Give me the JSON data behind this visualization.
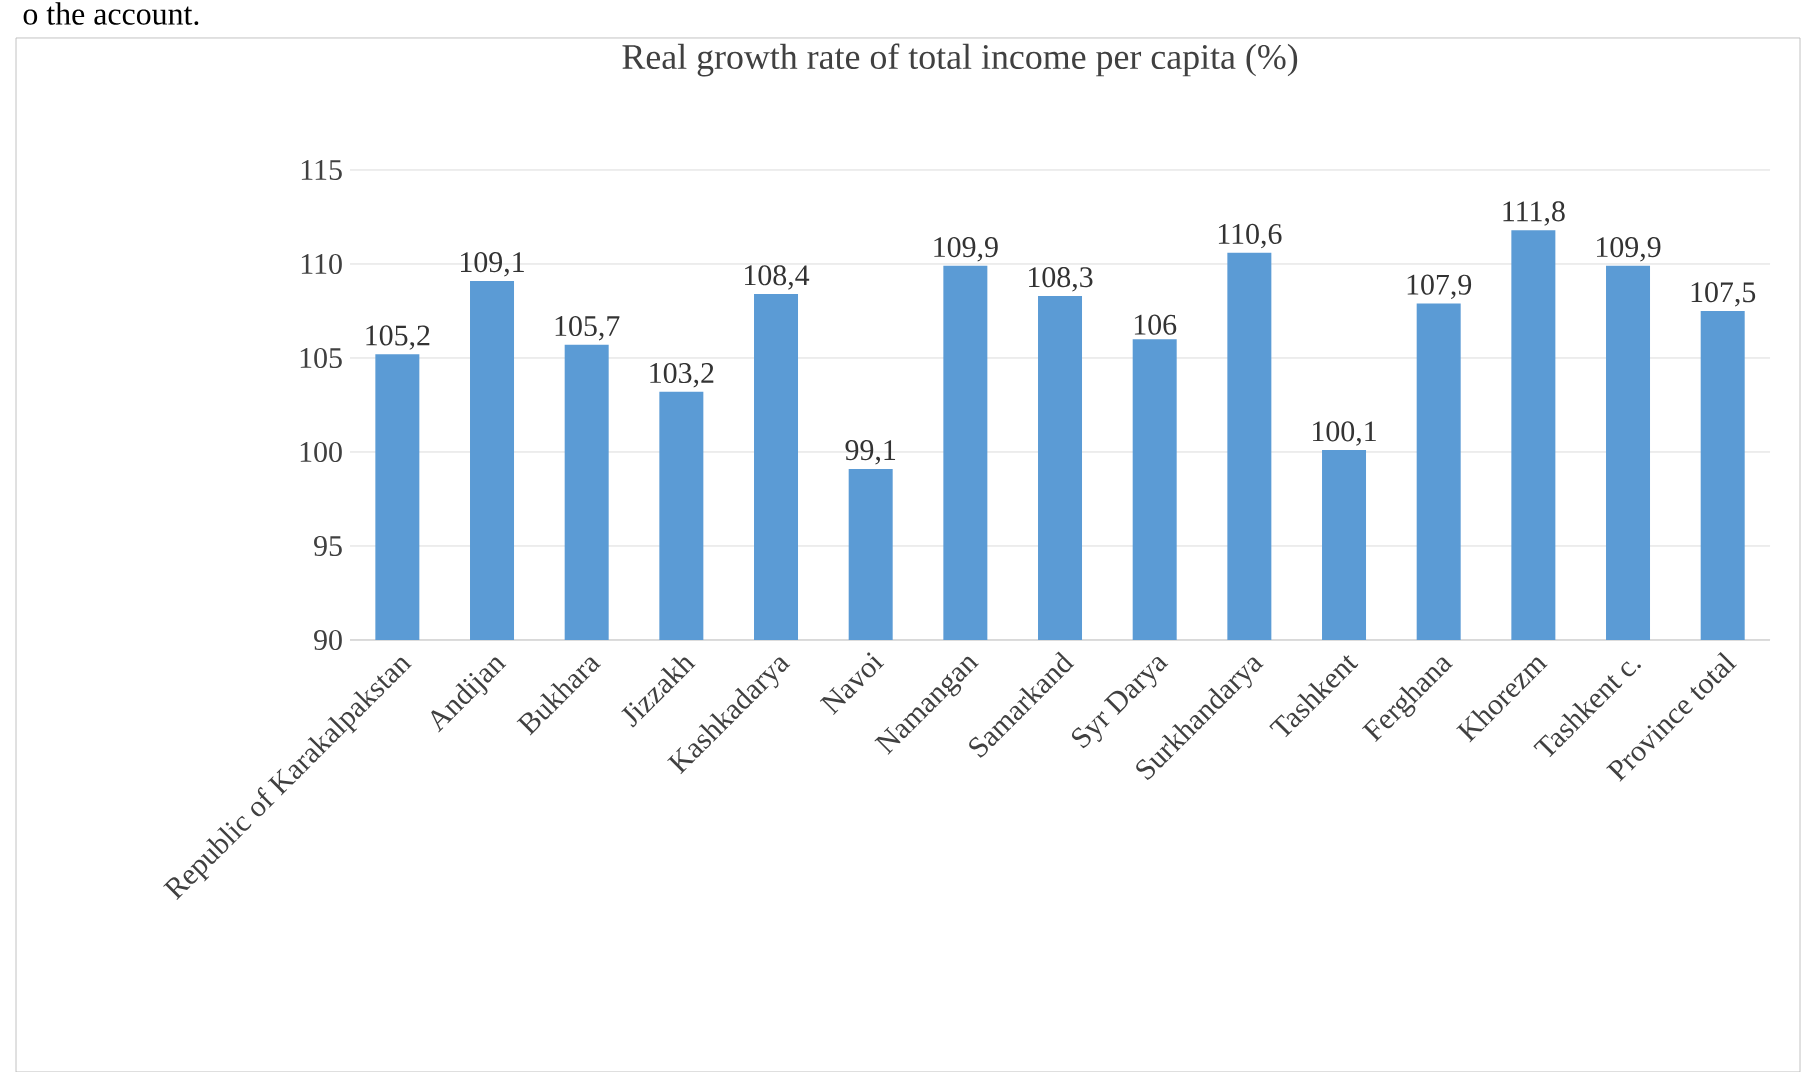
{
  "chart_data": {
    "type": "bar",
    "title": "Real growth rate of total income per capita (%)",
    "categories": [
      "Republic of Karakalpakstan",
      "Andijan",
      "Bukhara",
      "Jizzakh",
      "Kashkadarya",
      "Navoi",
      "Namangan",
      "Samarkand",
      "Syr Darya",
      "Surkhandarya",
      "Tashkent",
      "Ferghana",
      "Khorezm",
      "Tashkent c.",
      "Province total"
    ],
    "values": [
      105.2,
      109.1,
      105.7,
      103.2,
      108.4,
      99.1,
      109.9,
      108.3,
      106,
      110.6,
      100.1,
      107.9,
      111.8,
      109.9,
      107.5
    ],
    "value_labels": [
      "105,2",
      "109,1",
      "105,7",
      "103,2",
      "108,4",
      "99,1",
      "109,9",
      "108,3",
      "106",
      "110,6",
      "100,1",
      "107,9",
      "111,8",
      "109,9",
      "107,5"
    ],
    "color": "#5b9bd5",
    "ylim": [
      90,
      115
    ],
    "yticks": [
      90,
      95,
      100,
      105,
      110,
      115
    ],
    "grid": "y",
    "annotations": [
      "o the account."
    ]
  }
}
